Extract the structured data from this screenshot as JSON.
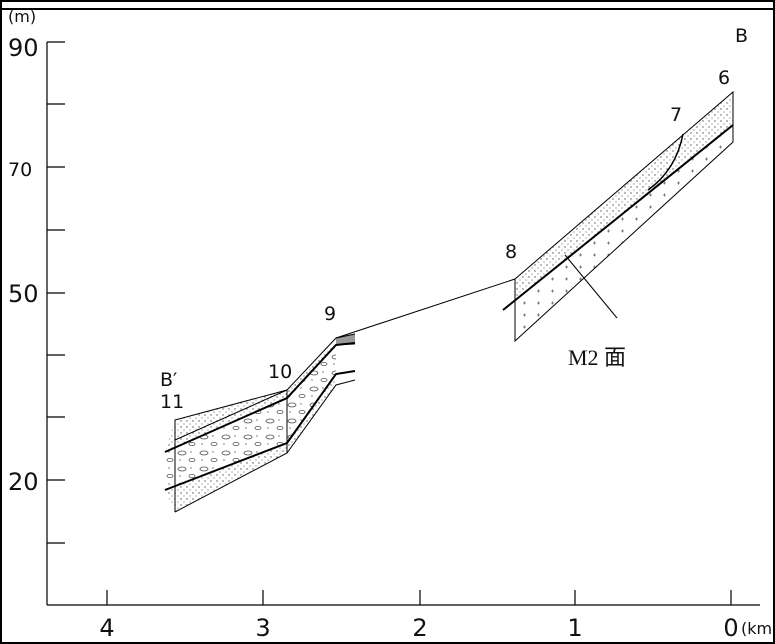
{
  "axes": {
    "y_label": "(m)",
    "y_ticks": [
      "90",
      "70",
      "50",
      "20"
    ],
    "x_ticks": [
      "4",
      "3",
      "2",
      "1",
      "0"
    ],
    "x_unit": "(km"
  },
  "section_labels": [
    "B",
    "6",
    "7",
    "8",
    "9",
    "10",
    "B′",
    "11"
  ],
  "surface_label": "M2 面"
}
